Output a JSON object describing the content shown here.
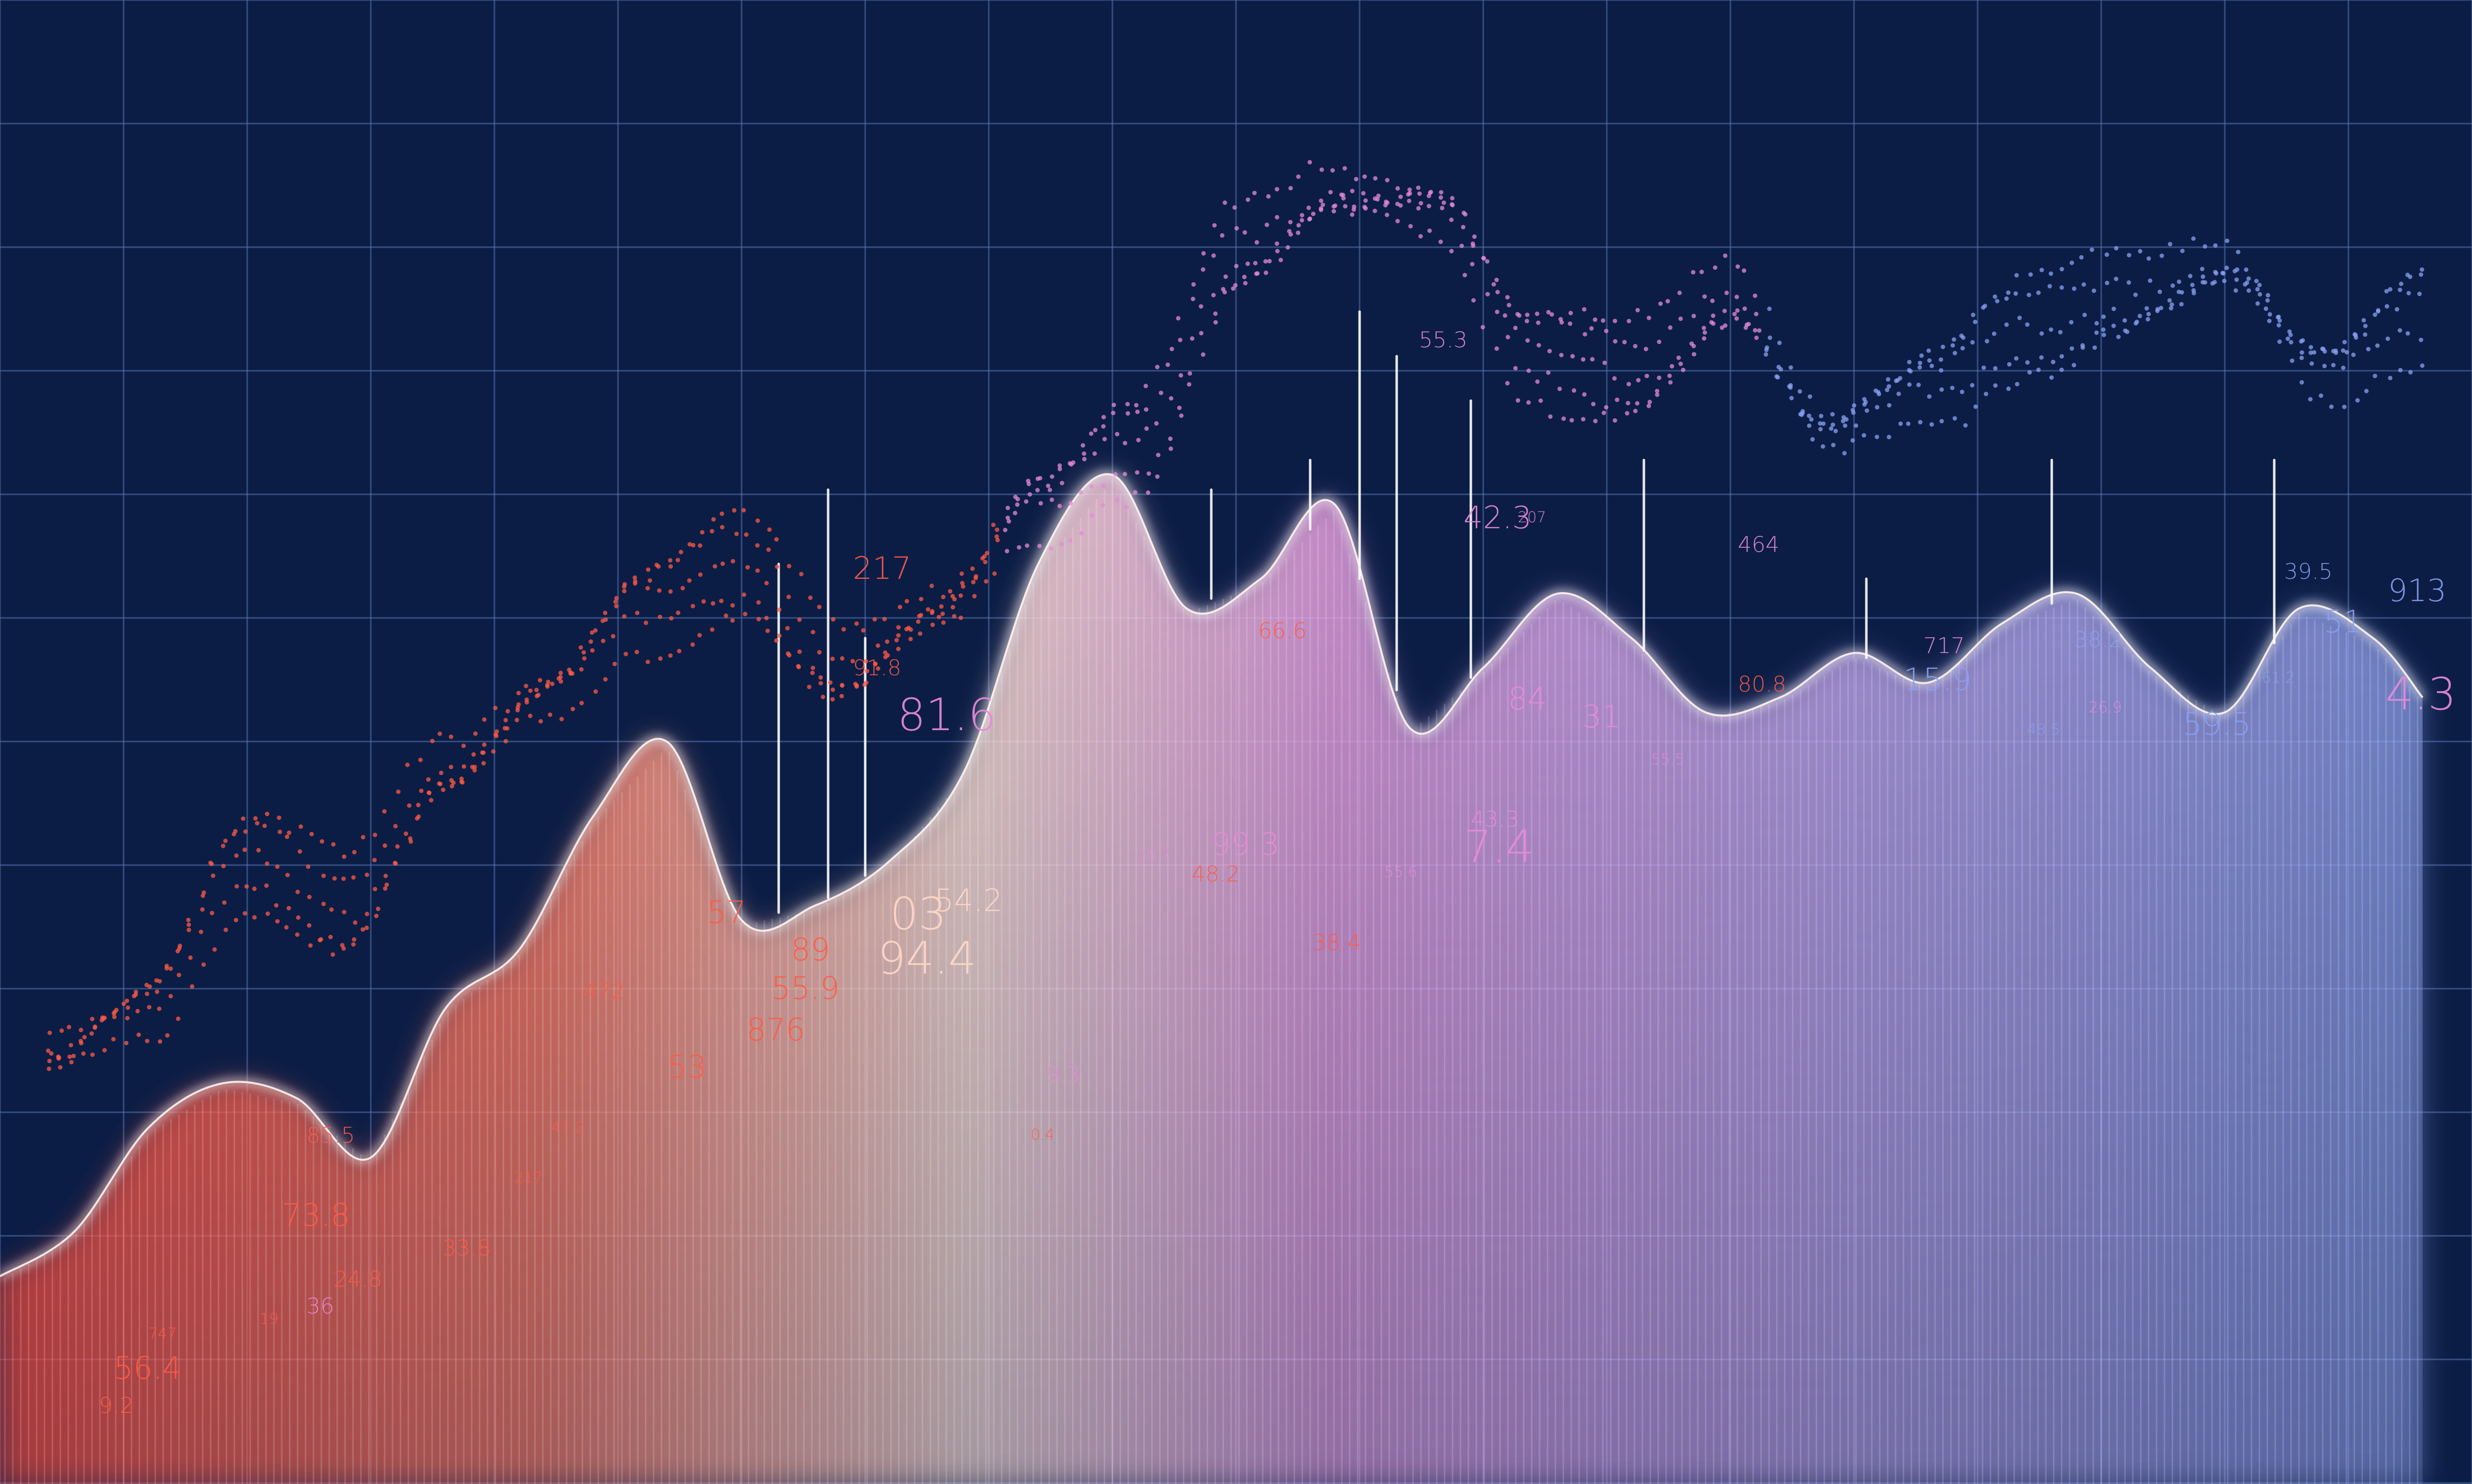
{
  "colors": {
    "background": "#0b1d45",
    "grid": "#5a76b4",
    "warm": "#ff5a45",
    "mid": "#ffd7c8",
    "pink": "#e78ad8",
    "cool": "#8aa0f0"
  },
  "chart_data": {
    "type": "area",
    "title": "",
    "xlabel": "",
    "ylabel": "",
    "xlim": [
      0,
      100
    ],
    "ylim": [
      0,
      100
    ],
    "grid": true,
    "legend": "none",
    "series": [
      {
        "x": [
          0,
          3,
          6,
          9,
          12,
          15,
          18,
          21,
          24,
          27,
          30,
          33,
          36,
          39,
          42,
          45,
          48,
          51,
          54,
          57,
          60,
          63,
          66,
          69,
          72,
          75,
          78,
          81,
          84,
          87,
          90,
          93,
          96,
          98
        ],
        "y": [
          14,
          17,
          24,
          27,
          26,
          22,
          32,
          36,
          45,
          50,
          38,
          39,
          42,
          48,
          62,
          68,
          59,
          61,
          66,
          51,
          55,
          60,
          57,
          52,
          53,
          56,
          54,
          58,
          60,
          55,
          52,
          59,
          57,
          53
        ]
      },
      {
        "x": [
          2,
          6,
          10,
          14,
          18,
          22,
          26,
          30,
          34,
          38,
          42,
          46,
          50,
          54,
          58,
          62,
          66,
          70,
          74,
          78,
          82,
          86,
          90,
          94,
          98
        ],
        "y": [
          29,
          32,
          42,
          39,
          48,
          53,
          59,
          62,
          55,
          59,
          66,
          70,
          83,
          87,
          86,
          76,
          75,
          80,
          71,
          74,
          78,
          80,
          82,
          75,
          79
        ]
      }
    ],
    "spikes": [
      {
        "x": 31.5,
        "y": 62
      },
      {
        "x": 33.5,
        "y": 67
      },
      {
        "x": 35.0,
        "y": 57
      },
      {
        "x": 49.0,
        "y": 67
      },
      {
        "x": 53.0,
        "y": 69
      },
      {
        "x": 55.0,
        "y": 79
      },
      {
        "x": 56.5,
        "y": 76
      },
      {
        "x": 59.5,
        "y": 73
      },
      {
        "x": 66.5,
        "y": 69
      },
      {
        "x": 75.5,
        "y": 61
      },
      {
        "x": 83.0,
        "y": 69
      },
      {
        "x": 92.0,
        "y": 69
      }
    ],
    "annotations": [
      {
        "text": "81.6",
        "x": 36.3,
        "y": 50.8,
        "size": "xl",
        "color": "pink"
      },
      {
        "text": "94.4",
        "x": 35.5,
        "y": 34.4,
        "size": "xl",
        "color": "mid"
      },
      {
        "text": "03",
        "x": 36.0,
        "y": 37.4,
        "size": "xl",
        "color": "mid"
      },
      {
        "text": "54.2",
        "x": 37.8,
        "y": 38.6,
        "size": "lg",
        "color": "mid"
      },
      {
        "text": "7.4",
        "x": 59.2,
        "y": 41.9,
        "size": "xl",
        "color": "pink"
      },
      {
        "text": "59.5",
        "x": 88.3,
        "y": 50.5,
        "size": "lg",
        "color": "cool"
      },
      {
        "text": "15.9",
        "x": 77.0,
        "y": 53.5,
        "size": "lg",
        "color": "cool"
      },
      {
        "text": "4.3",
        "x": 96.5,
        "y": 52.2,
        "size": "xl",
        "color": "pink"
      },
      {
        "text": "51",
        "x": 94.0,
        "y": 57.4,
        "size": "lg",
        "color": "cool"
      },
      {
        "text": "913",
        "x": 96.6,
        "y": 59.5,
        "size": "lg",
        "color": "cool"
      },
      {
        "text": "99.3",
        "x": 49.0,
        "y": 42.4,
        "size": "lg",
        "color": "pink"
      },
      {
        "text": "55.9",
        "x": 31.2,
        "y": 32.7,
        "size": "lg",
        "color": "warm"
      },
      {
        "text": "876",
        "x": 30.2,
        "y": 29.9,
        "size": "lg",
        "color": "warm"
      },
      {
        "text": "89",
        "x": 32.0,
        "y": 35.3,
        "size": "lg",
        "color": "warm"
      },
      {
        "text": "217",
        "x": 34.5,
        "y": 61.0,
        "size": "lg",
        "color": "warm"
      },
      {
        "text": "53",
        "x": 27.0,
        "y": 27.4,
        "size": "lg",
        "color": "warm"
      },
      {
        "text": "57",
        "x": 28.6,
        "y": 37.8,
        "size": "lg",
        "color": "warm"
      },
      {
        "text": "472",
        "x": 23.6,
        "y": 32.7,
        "size": "md",
        "color": "warm"
      },
      {
        "text": "73.8",
        "x": 11.4,
        "y": 17.4,
        "size": "lg",
        "color": "warm"
      },
      {
        "text": "56.4",
        "x": 4.6,
        "y": 7.1,
        "size": "lg",
        "color": "warm"
      },
      {
        "text": "9.2",
        "x": 4.0,
        "y": 4.8,
        "size": "md",
        "color": "warm"
      },
      {
        "text": "85.5",
        "x": 12.4,
        "y": 23.0,
        "size": "md",
        "color": "warm"
      },
      {
        "text": "24.8",
        "x": 13.5,
        "y": 13.3,
        "size": "md",
        "color": "warm"
      },
      {
        "text": "36",
        "x": 12.4,
        "y": 11.5,
        "size": "md",
        "color": "pink"
      },
      {
        "text": "33.8",
        "x": 17.9,
        "y": 15.4,
        "size": "md",
        "color": "warm"
      },
      {
        "text": "38.4",
        "x": 53.1,
        "y": 36.0,
        "size": "md",
        "color": "warm"
      },
      {
        "text": "48.2",
        "x": 48.2,
        "y": 40.6,
        "size": "md",
        "color": "warm"
      },
      {
        "text": "9.3",
        "x": 42.3,
        "y": 27.1,
        "size": "md",
        "color": "pink"
      },
      {
        "text": "0.4",
        "x": 41.7,
        "y": 23.2,
        "size": "sm",
        "color": "warm"
      },
      {
        "text": "80.8",
        "x": 70.3,
        "y": 53.4,
        "size": "md",
        "color": "warm"
      },
      {
        "text": "84",
        "x": 61.0,
        "y": 52.2,
        "size": "lg",
        "color": "pink"
      },
      {
        "text": "31",
        "x": 64.0,
        "y": 51.0,
        "size": "lg",
        "color": "pink"
      },
      {
        "text": "55.3",
        "x": 57.4,
        "y": 76.6,
        "size": "md",
        "color": "pink"
      },
      {
        "text": "42.3",
        "x": 59.2,
        "y": 64.4,
        "size": "lg",
        "color": "pink"
      },
      {
        "text": "66.6",
        "x": 50.9,
        "y": 57.0,
        "size": "md",
        "color": "warm"
      },
      {
        "text": "464",
        "x": 70.3,
        "y": 62.8,
        "size": "md",
        "color": "pink"
      },
      {
        "text": "717",
        "x": 77.8,
        "y": 56.0,
        "size": "md",
        "color": "pink"
      },
      {
        "text": "38.2",
        "x": 83.9,
        "y": 56.4,
        "size": "md",
        "color": "cool"
      },
      {
        "text": "43.3",
        "x": 59.5,
        "y": 44.3,
        "size": "md",
        "color": "pink"
      },
      {
        "text": "55.6",
        "x": 56.0,
        "y": 40.9,
        "size": "sm",
        "color": "pink"
      },
      {
        "text": "91.8",
        "x": 34.5,
        "y": 54.5,
        "size": "md",
        "color": "warm"
      },
      {
        "text": "207",
        "x": 61.4,
        "y": 64.8,
        "size": "sm",
        "color": "pink"
      },
      {
        "text": "39.5",
        "x": 92.4,
        "y": 61.0,
        "size": "md",
        "color": "cool"
      },
      {
        "text": "19",
        "x": 10.5,
        "y": 10.8,
        "size": "sm",
        "color": "warm"
      },
      {
        "text": "747",
        "x": 6.0,
        "y": 9.8,
        "size": "sm",
        "color": "warm"
      },
      {
        "text": "217",
        "x": 20.8,
        "y": 20.3,
        "size": "sm",
        "color": "warm"
      },
      {
        "text": "41.2",
        "x": 22.3,
        "y": 23.7,
        "size": "sm",
        "color": "warm"
      },
      {
        "text": "48.5",
        "x": 82.0,
        "y": 50.5,
        "size": "sm",
        "color": "cool"
      },
      {
        "text": "61.2",
        "x": 91.5,
        "y": 54.0,
        "size": "sm",
        "color": "cool"
      },
      {
        "text": "26.9",
        "x": 84.5,
        "y": 52.0,
        "size": "sm",
        "color": "pink"
      },
      {
        "text": "20.7",
        "x": 46.0,
        "y": 42.0,
        "size": "sm",
        "color": "pink"
      },
      {
        "text": "55.5",
        "x": 66.8,
        "y": 48.5,
        "size": "sm",
        "color": "pink"
      }
    ]
  }
}
